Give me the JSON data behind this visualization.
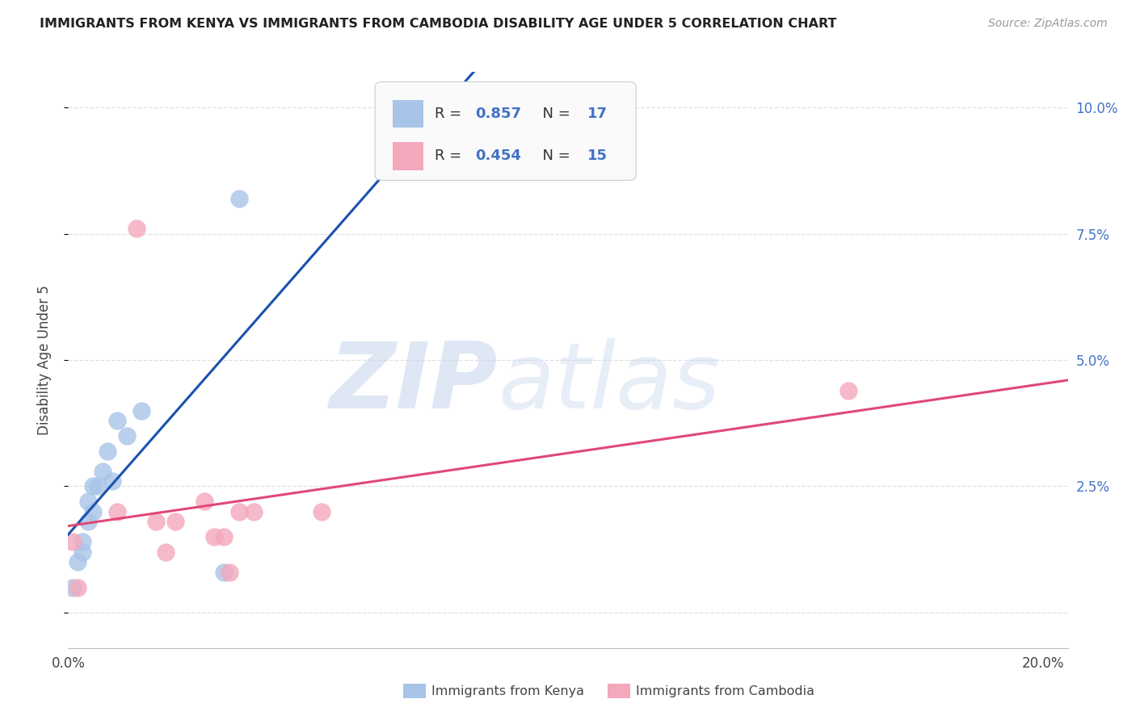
{
  "title": "IMMIGRANTS FROM KENYA VS IMMIGRANTS FROM CAMBODIA DISABILITY AGE UNDER 5 CORRELATION CHART",
  "source": "Source: ZipAtlas.com",
  "ylabel": "Disability Age Under 5",
  "xlim": [
    0.0,
    0.205
  ],
  "ylim": [
    -0.007,
    0.107
  ],
  "yticks": [
    0.0,
    0.025,
    0.05,
    0.075,
    0.1
  ],
  "ytick_labels": [
    "",
    "2.5%",
    "5.0%",
    "7.5%",
    "10.0%"
  ],
  "kenya_R": 0.857,
  "kenya_N": 17,
  "cambodia_R": 0.454,
  "cambodia_N": 15,
  "kenya_color": "#a8c4e8",
  "cambodia_color": "#f4a8bc",
  "kenya_line_color": "#1a52b0",
  "cambodia_line_color": "#e04878",
  "legend_label_kenya": "Immigrants from Kenya",
  "legend_label_cambodia": "Immigrants from Cambodia",
  "kenya_x": [
    0.001,
    0.002,
    0.003,
    0.003,
    0.004,
    0.004,
    0.005,
    0.005,
    0.006,
    0.007,
    0.008,
    0.009,
    0.01,
    0.012,
    0.015,
    0.032,
    0.035
  ],
  "kenya_y": [
    0.005,
    0.01,
    0.012,
    0.014,
    0.018,
    0.022,
    0.02,
    0.025,
    0.025,
    0.028,
    0.032,
    0.026,
    0.038,
    0.035,
    0.04,
    0.008,
    0.082
  ],
  "cambodia_x": [
    0.001,
    0.002,
    0.01,
    0.014,
    0.02,
    0.022,
    0.03,
    0.033,
    0.035,
    0.052,
    0.16,
    0.018,
    0.028,
    0.032,
    0.038
  ],
  "cambodia_y": [
    0.014,
    0.005,
    0.02,
    0.076,
    0.012,
    0.018,
    0.015,
    0.008,
    0.02,
    0.02,
    0.044,
    0.018,
    0.022,
    0.015,
    0.02
  ],
  "watermark_zip": "ZIP",
  "watermark_atlas": "atlas",
  "background_color": "#ffffff",
  "grid_color": "#e0e0e0",
  "title_fontsize": 11.5,
  "source_fontsize": 10,
  "tick_fontsize": 12,
  "ylabel_fontsize": 12
}
